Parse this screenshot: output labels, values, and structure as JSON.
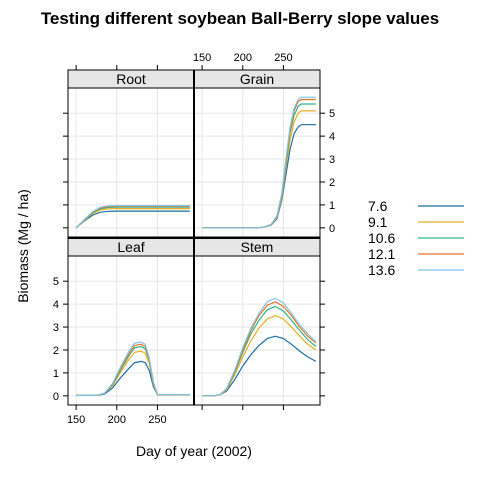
{
  "chart_data": {
    "type": "line",
    "title": "Testing different soybean Ball-Berry slope values",
    "xlabel": "Day of year (2002)",
    "ylabel": "Biomass (Mg / ha)",
    "xlim": [
      140,
      295
    ],
    "ylim": [
      -0.4,
      6.1
    ],
    "xticks": [
      150,
      200,
      250
    ],
    "yticks": [
      0,
      1,
      2,
      3,
      4,
      5
    ],
    "grid": true,
    "legend_position": "right",
    "series": [
      {
        "name": "7.6",
        "color": "#1a6fa5"
      },
      {
        "name": "9.1",
        "color": "#e8ad1e"
      },
      {
        "name": "10.6",
        "color": "#2db58a"
      },
      {
        "name": "12.1",
        "color": "#e6752c"
      },
      {
        "name": "13.6",
        "color": "#80c4e6"
      }
    ],
    "panels": [
      {
        "name": "Root",
        "data": [
          [
            [
              150,
              0
            ],
            [
              160,
              0.3
            ],
            [
              170,
              0.55
            ],
            [
              180,
              0.68
            ],
            [
              190,
              0.72
            ],
            [
              200,
              0.73
            ],
            [
              290,
              0.73
            ]
          ],
          [
            [
              150,
              0
            ],
            [
              160,
              0.32
            ],
            [
              170,
              0.62
            ],
            [
              180,
              0.78
            ],
            [
              190,
              0.83
            ],
            [
              200,
              0.84
            ],
            [
              290,
              0.84
            ]
          ],
          [
            [
              150,
              0
            ],
            [
              160,
              0.34
            ],
            [
              170,
              0.66
            ],
            [
              180,
              0.84
            ],
            [
              190,
              0.89
            ],
            [
              200,
              0.9
            ],
            [
              290,
              0.9
            ]
          ],
          [
            [
              150,
              0
            ],
            [
              160,
              0.35
            ],
            [
              170,
              0.68
            ],
            [
              180,
              0.87
            ],
            [
              190,
              0.93
            ],
            [
              200,
              0.94
            ],
            [
              290,
              0.94
            ]
          ],
          [
            [
              150,
              0
            ],
            [
              160,
              0.36
            ],
            [
              170,
              0.7
            ],
            [
              180,
              0.9
            ],
            [
              190,
              0.96
            ],
            [
              200,
              0.97
            ],
            [
              290,
              0.97
            ]
          ]
        ]
      },
      {
        "name": "Grain",
        "data": [
          [
            [
              150,
              0
            ],
            [
              215,
              0
            ],
            [
              225,
              0.02
            ],
            [
              235,
              0.12
            ],
            [
              242,
              0.4
            ],
            [
              248,
              1.2
            ],
            [
              253,
              2.3
            ],
            [
              258,
              3.4
            ],
            [
              263,
              4.1
            ],
            [
              268,
              4.4
            ],
            [
              272,
              4.5
            ],
            [
              290,
              4.5
            ]
          ],
          [
            [
              150,
              0
            ],
            [
              215,
              0
            ],
            [
              225,
              0.02
            ],
            [
              235,
              0.13
            ],
            [
              242,
              0.45
            ],
            [
              248,
              1.3
            ],
            [
              253,
              2.6
            ],
            [
              258,
              3.8
            ],
            [
              263,
              4.6
            ],
            [
              268,
              5.0
            ],
            [
              272,
              5.1
            ],
            [
              290,
              5.1
            ]
          ],
          [
            [
              150,
              0
            ],
            [
              215,
              0
            ],
            [
              225,
              0.02
            ],
            [
              235,
              0.14
            ],
            [
              242,
              0.48
            ],
            [
              248,
              1.4
            ],
            [
              253,
              2.8
            ],
            [
              258,
              4.1
            ],
            [
              263,
              4.9
            ],
            [
              268,
              5.3
            ],
            [
              272,
              5.4
            ],
            [
              290,
              5.4
            ]
          ],
          [
            [
              150,
              0
            ],
            [
              215,
              0
            ],
            [
              225,
              0.02
            ],
            [
              235,
              0.15
            ],
            [
              242,
              0.5
            ],
            [
              248,
              1.45
            ],
            [
              253,
              2.9
            ],
            [
              258,
              4.2
            ],
            [
              263,
              5.1
            ],
            [
              268,
              5.5
            ],
            [
              272,
              5.6
            ],
            [
              290,
              5.6
            ]
          ],
          [
            [
              150,
              0
            ],
            [
              215,
              0
            ],
            [
              225,
              0.02
            ],
            [
              235,
              0.15
            ],
            [
              242,
              0.52
            ],
            [
              248,
              1.5
            ],
            [
              253,
              3.0
            ],
            [
              258,
              4.35
            ],
            [
              263,
              5.2
            ],
            [
              268,
              5.6
            ],
            [
              272,
              5.7
            ],
            [
              290,
              5.7
            ]
          ]
        ]
      },
      {
        "name": "Leaf",
        "data": [
          [
            [
              150,
              0.02
            ],
            [
              175,
              0.02
            ],
            [
              185,
              0.08
            ],
            [
              195,
              0.35
            ],
            [
              205,
              0.8
            ],
            [
              215,
              1.2
            ],
            [
              222,
              1.45
            ],
            [
              230,
              1.5
            ],
            [
              235,
              1.45
            ],
            [
              240,
              1.1
            ],
            [
              245,
              0.4
            ],
            [
              250,
              0.05
            ],
            [
              290,
              0.05
            ]
          ],
          [
            [
              150,
              0.02
            ],
            [
              175,
              0.02
            ],
            [
              185,
              0.1
            ],
            [
              195,
              0.45
            ],
            [
              205,
              1.05
            ],
            [
              215,
              1.6
            ],
            [
              222,
              1.9
            ],
            [
              230,
              1.95
            ],
            [
              235,
              1.85
            ],
            [
              240,
              1.4
            ],
            [
              245,
              0.5
            ],
            [
              250,
              0.05
            ],
            [
              290,
              0.05
            ]
          ],
          [
            [
              150,
              0.02
            ],
            [
              175,
              0.02
            ],
            [
              185,
              0.11
            ],
            [
              195,
              0.5
            ],
            [
              205,
              1.15
            ],
            [
              215,
              1.75
            ],
            [
              222,
              2.1
            ],
            [
              230,
              2.15
            ],
            [
              235,
              2.05
            ],
            [
              240,
              1.55
            ],
            [
              245,
              0.55
            ],
            [
              250,
              0.05
            ],
            [
              290,
              0.05
            ]
          ],
          [
            [
              150,
              0.02
            ],
            [
              175,
              0.02
            ],
            [
              185,
              0.12
            ],
            [
              195,
              0.52
            ],
            [
              205,
              1.22
            ],
            [
              215,
              1.85
            ],
            [
              222,
              2.2
            ],
            [
              230,
              2.25
            ],
            [
              235,
              2.15
            ],
            [
              240,
              1.6
            ],
            [
              245,
              0.55
            ],
            [
              250,
              0.05
            ],
            [
              290,
              0.05
            ]
          ],
          [
            [
              150,
              0.02
            ],
            [
              175,
              0.02
            ],
            [
              185,
              0.12
            ],
            [
              195,
              0.55
            ],
            [
              205,
              1.28
            ],
            [
              215,
              1.95
            ],
            [
              222,
              2.3
            ],
            [
              230,
              2.35
            ],
            [
              235,
              2.25
            ],
            [
              240,
              1.65
            ],
            [
              245,
              0.6
            ],
            [
              250,
              0.05
            ],
            [
              290,
              0.05
            ]
          ]
        ]
      },
      {
        "name": "Stem",
        "data": [
          [
            [
              150,
              0
            ],
            [
              165,
              0
            ],
            [
              172,
              0.05
            ],
            [
              180,
              0.2
            ],
            [
              190,
              0.7
            ],
            [
              200,
              1.3
            ],
            [
              210,
              1.8
            ],
            [
              220,
              2.2
            ],
            [
              230,
              2.5
            ],
            [
              240,
              2.6
            ],
            [
              250,
              2.5
            ],
            [
              260,
              2.25
            ],
            [
              270,
              1.95
            ],
            [
              280,
              1.7
            ],
            [
              290,
              1.5
            ]
          ],
          [
            [
              150,
              0
            ],
            [
              165,
              0
            ],
            [
              172,
              0.05
            ],
            [
              180,
              0.25
            ],
            [
              190,
              0.9
            ],
            [
              200,
              1.7
            ],
            [
              210,
              2.4
            ],
            [
              220,
              2.95
            ],
            [
              230,
              3.35
            ],
            [
              240,
              3.5
            ],
            [
              250,
              3.35
            ],
            [
              260,
              3.0
            ],
            [
              270,
              2.6
            ],
            [
              280,
              2.25
            ],
            [
              290,
              2.0
            ]
          ],
          [
            [
              150,
              0
            ],
            [
              165,
              0
            ],
            [
              172,
              0.05
            ],
            [
              180,
              0.28
            ],
            [
              190,
              1.0
            ],
            [
              200,
              1.9
            ],
            [
              210,
              2.7
            ],
            [
              220,
              3.3
            ],
            [
              230,
              3.75
            ],
            [
              240,
              3.9
            ],
            [
              250,
              3.7
            ],
            [
              260,
              3.3
            ],
            [
              270,
              2.85
            ],
            [
              280,
              2.45
            ],
            [
              290,
              2.15
            ]
          ],
          [
            [
              150,
              0
            ],
            [
              165,
              0
            ],
            [
              172,
              0.05
            ],
            [
              180,
              0.3
            ],
            [
              190,
              1.05
            ],
            [
              200,
              2.0
            ],
            [
              210,
              2.85
            ],
            [
              220,
              3.5
            ],
            [
              230,
              3.95
            ],
            [
              240,
              4.1
            ],
            [
              250,
              3.9
            ],
            [
              260,
              3.5
            ],
            [
              270,
              3.0
            ],
            [
              280,
              2.6
            ],
            [
              290,
              2.3
            ]
          ],
          [
            [
              150,
              0
            ],
            [
              165,
              0
            ],
            [
              172,
              0.05
            ],
            [
              180,
              0.31
            ],
            [
              190,
              1.1
            ],
            [
              200,
              2.1
            ],
            [
              210,
              2.95
            ],
            [
              220,
              3.6
            ],
            [
              230,
              4.1
            ],
            [
              240,
              4.25
            ],
            [
              250,
              4.05
            ],
            [
              260,
              3.6
            ],
            [
              270,
              3.1
            ],
            [
              280,
              2.7
            ],
            [
              290,
              2.35
            ]
          ]
        ]
      }
    ]
  }
}
